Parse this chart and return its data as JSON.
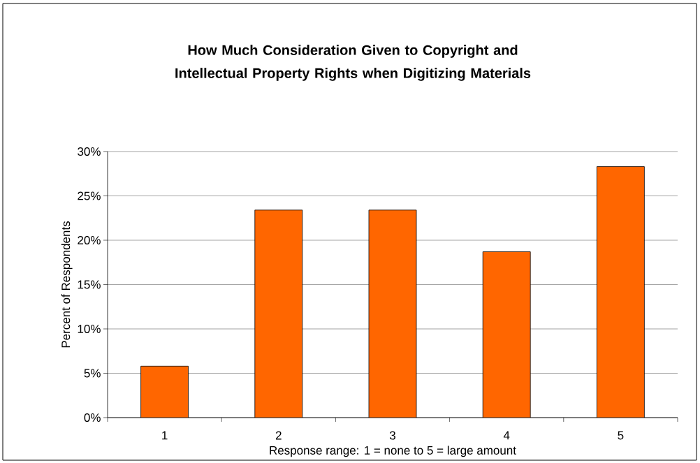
{
  "chart_data": {
    "type": "bar",
    "title": "How Much Consideration Given to Copyright and Intellectual Property Rights when Digitizing Materials",
    "xlabel": "Response range:  1 = none  to  5 = large amount",
    "ylabel": "Percent of Respondents",
    "categories": [
      "1",
      "2",
      "3",
      "4",
      "5"
    ],
    "values": [
      5.8,
      23.4,
      23.4,
      18.7,
      28.3
    ],
    "color": "#ff6600",
    "ylim": [
      0,
      30
    ],
    "yticks": [
      {
        "value": 0,
        "label": "0%"
      },
      {
        "value": 5,
        "label": "5%"
      },
      {
        "value": 10,
        "label": "10%"
      },
      {
        "value": 15,
        "label": "15%"
      },
      {
        "value": 20,
        "label": "20%"
      },
      {
        "value": 25,
        "label": "25%"
      },
      {
        "value": 30,
        "label": "30%"
      }
    ],
    "grid": "y"
  }
}
